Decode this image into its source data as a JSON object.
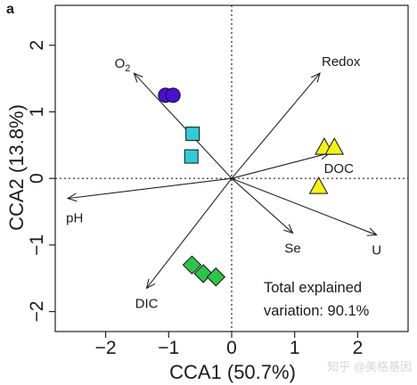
{
  "chart_data": {
    "type": "scatter",
    "panel_label": "a",
    "xlabel": "CCA1 (50.7%)",
    "ylabel": "CCA2 (13.8%)",
    "xlim": [
      -2.8,
      2.8
    ],
    "ylim": [
      -2.3,
      2.6
    ],
    "x_ticks": [
      -2,
      -1,
      0,
      1,
      2
    ],
    "y_ticks": [
      -2,
      -1,
      0,
      1,
      2
    ],
    "x_tick_labels": [
      "−2",
      "−1",
      "0",
      "1",
      "2"
    ],
    "y_tick_labels": [
      "−2",
      "−1",
      "0",
      "1",
      "2"
    ],
    "zero_lines": "dotted",
    "vectors": [
      {
        "name": "O",
        "subscript": "2",
        "x": -1.55,
        "y": 1.58,
        "label_anchor": "top-left"
      },
      {
        "name": "Redox",
        "x": 1.4,
        "y": 1.58,
        "label_anchor": "top-right"
      },
      {
        "name": "DOC",
        "x": 1.55,
        "y": 0.38,
        "label_anchor": "bottom-right"
      },
      {
        "name": "pH",
        "x": -2.6,
        "y": -0.3,
        "label_anchor": "bottom-left"
      },
      {
        "name": "U",
        "x": 2.3,
        "y": -0.85,
        "label_anchor": "below"
      },
      {
        "name": "Se",
        "x": 0.97,
        "y": -0.82,
        "label_anchor": "below"
      },
      {
        "name": "DIC",
        "x": -1.35,
        "y": -1.65,
        "label_anchor": "below"
      }
    ],
    "series": [
      {
        "marker": "circle",
        "color": "#4a0fd4",
        "points": [
          [
            -1.05,
            1.25
          ],
          [
            -0.93,
            1.25
          ]
        ]
      },
      {
        "marker": "square",
        "color": "#36c9d8",
        "points": [
          [
            -0.62,
            0.67
          ],
          [
            -0.64,
            0.33
          ]
        ]
      },
      {
        "marker": "triangle",
        "color": "#f5f01a",
        "points": [
          [
            1.47,
            0.47
          ],
          [
            1.63,
            0.47
          ],
          [
            1.38,
            -0.12
          ]
        ]
      },
      {
        "marker": "diamond",
        "color": "#2ec44a",
        "points": [
          [
            -0.63,
            -1.3
          ],
          [
            -0.45,
            -1.43
          ],
          [
            -0.25,
            -1.48
          ]
        ]
      }
    ],
    "annotation_lines": [
      "Total explained",
      "variation: 90.1%"
    ],
    "watermark": "知乎 @美格基因"
  }
}
